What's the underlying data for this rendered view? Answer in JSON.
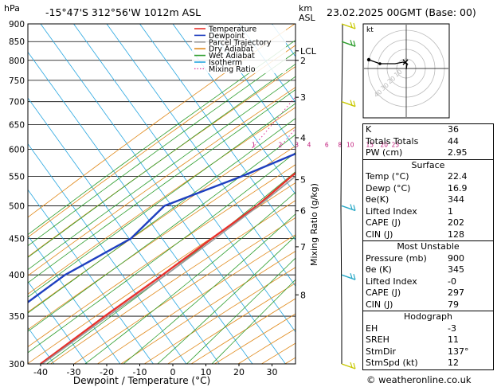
{
  "header": {
    "hpa_unit": "hPa",
    "location": "-15°47'S  312°56'W  1012m  ASL",
    "km_unit": "km",
    "asl_unit": "ASL",
    "datetime": "23.02.2025  00GMT  (Base: 00)"
  },
  "legend": [
    {
      "label": "Temperature",
      "color": "#e8312c"
    },
    {
      "label": "Dewpoint",
      "color": "#1f3fbf"
    },
    {
      "label": "Parcel Trajectory",
      "color": "#999999"
    },
    {
      "label": "Dry Adiabat",
      "color": "#e0891a"
    },
    {
      "label": "Wet Adiabat",
      "color": "#2e9e2e"
    },
    {
      "label": "Isotherm",
      "color": "#27a6e0"
    },
    {
      "label": "Mixing Ratio",
      "color": "#e0359a",
      "dotted": true
    }
  ],
  "hodograph": {
    "unit_label": "kt",
    "ring_labels": [
      "10",
      "20",
      "30",
      "40"
    ]
  },
  "chart_data": {
    "type": "line",
    "xlabel": "Dewpoint / Temperature (°C)",
    "ylabel_right": "Mixing Ratio (g/kg)",
    "xlim": [
      -40,
      35
    ],
    "ylim": [
      300,
      900
    ],
    "x_ticks": [
      -40,
      -30,
      -20,
      -10,
      0,
      10,
      20,
      30
    ],
    "pressure_ticks": [
      300,
      350,
      400,
      450,
      500,
      550,
      600,
      650,
      700,
      750,
      800,
      850,
      900
    ],
    "km_ticks": [
      {
        "label": "8",
        "p": 375
      },
      {
        "label": "7",
        "p": 438
      },
      {
        "label": "6",
        "p": 492
      },
      {
        "label": "5",
        "p": 544
      },
      {
        "label": "4",
        "p": 623
      },
      {
        "label": "3",
        "p": 710
      },
      {
        "label": "2",
        "p": 800
      },
      {
        "label": "LCL",
        "p": 825
      }
    ],
    "mixing_ratio_labels": [
      "1",
      "2",
      "3",
      "4",
      "6",
      "8",
      "10",
      "15",
      "20",
      "25"
    ],
    "mixing_ratio_values": [
      1,
      2,
      3,
      4,
      6,
      8,
      10,
      15,
      20,
      25
    ],
    "series": [
      {
        "name": "Temperature",
        "color": "#e8312c",
        "points": [
          [
            900,
            22.4
          ],
          [
            850,
            20.5
          ],
          [
            800,
            16.5
          ],
          [
            750,
            12.5
          ],
          [
            700,
            8.0
          ],
          [
            650,
            4.0
          ],
          [
            600,
            -0.5
          ],
          [
            550,
            -5.0
          ],
          [
            500,
            -9.0
          ],
          [
            450,
            -15.5
          ],
          [
            400,
            -22.5
          ],
          [
            350,
            -31.0
          ],
          [
            300,
            -40.0
          ]
        ]
      },
      {
        "name": "Dewpoint",
        "color": "#1f3fbf",
        "points": [
          [
            900,
            16.9
          ],
          [
            850,
            13.5
          ],
          [
            800,
            10.0
          ],
          [
            750,
            7.0
          ],
          [
            700,
            4.0
          ],
          [
            650,
            0.5
          ],
          [
            600,
            -6.5
          ],
          [
            550,
            -20.0
          ],
          [
            500,
            -37.0
          ],
          [
            450,
            -40.0
          ],
          [
            400,
            -52.0
          ],
          [
            350,
            -60.0
          ],
          [
            300,
            -70.0
          ]
        ]
      },
      {
        "name": "Parcel Trajectory",
        "color": "#999999",
        "points": [
          [
            900,
            22.4
          ],
          [
            850,
            18.0
          ],
          [
            825,
            16.0
          ],
          [
            800,
            14.5
          ],
          [
            750,
            11.5
          ],
          [
            700,
            8.0
          ],
          [
            650,
            4.5
          ],
          [
            600,
            0.5
          ],
          [
            550,
            -3.8
          ],
          [
            500,
            -8.5
          ],
          [
            450,
            -14.5
          ],
          [
            400,
            -21.5
          ],
          [
            350,
            -30.0
          ],
          [
            300,
            -39.5
          ]
        ]
      }
    ],
    "wind_barbs": [
      {
        "p": 300,
        "color": "#c8c800"
      },
      {
        "p": 400,
        "color": "#29a9c7"
      },
      {
        "p": 500,
        "color": "#29a9c7"
      },
      {
        "p": 700,
        "color": "#c8c800"
      },
      {
        "p": 850,
        "color": "#2e9e2e"
      },
      {
        "p": 900,
        "color": "#c8c800"
      }
    ]
  },
  "indices": {
    "top": [
      {
        "label": "K",
        "value": "36"
      },
      {
        "label": "Totals Totals",
        "value": "44"
      },
      {
        "label": "PW (cm)",
        "value": "2.95"
      }
    ],
    "surface": {
      "title": "Surface",
      "rows": [
        {
          "label": "Temp (°C)",
          "value": "22.4"
        },
        {
          "label": "Dewp (°C)",
          "value": "16.9"
        },
        {
          "label": "θe(K)",
          "value": "344"
        },
        {
          "label": "Lifted Index",
          "value": "1"
        },
        {
          "label": "CAPE (J)",
          "value": "202"
        },
        {
          "label": "CIN (J)",
          "value": "128"
        }
      ]
    },
    "most_unstable": {
      "title": "Most Unstable",
      "rows": [
        {
          "label": "Pressure (mb)",
          "value": "900"
        },
        {
          "label": "θe (K)",
          "value": "345"
        },
        {
          "label": "Lifted Index",
          "value": "-0"
        },
        {
          "label": "CAPE (J)",
          "value": "297"
        },
        {
          "label": "CIN (J)",
          "value": "79"
        }
      ]
    },
    "hodograph": {
      "title": "Hodograph",
      "rows": [
        {
          "label": "EH",
          "value": "-3"
        },
        {
          "label": "SREH",
          "value": "11"
        },
        {
          "label": "StmDir",
          "value": "137°"
        },
        {
          "label": "StmSpd (kt)",
          "value": "12"
        }
      ]
    }
  },
  "footer": {
    "copyright": "© weatheronline.co.uk"
  }
}
